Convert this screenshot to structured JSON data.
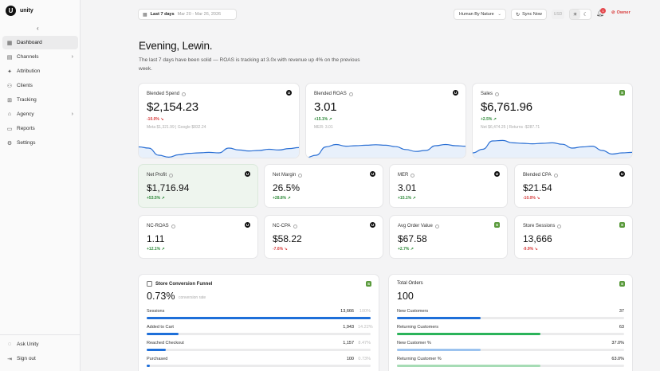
{
  "brand": {
    "name": "unity",
    "logo_letter": "U"
  },
  "sidebar": {
    "collapse_icon": "chevron-left-icon",
    "items": [
      {
        "label": "Dashboard",
        "icon": "grid-icon",
        "active": true,
        "expandable": false
      },
      {
        "label": "Channels",
        "icon": "layers-icon",
        "active": false,
        "expandable": true
      },
      {
        "label": "Attribution",
        "icon": "sparkle-icon",
        "active": false,
        "expandable": false
      },
      {
        "label": "Clients",
        "icon": "users-icon",
        "active": false,
        "expandable": false
      },
      {
        "label": "Tracking",
        "icon": "tracking-icon",
        "active": false,
        "expandable": false
      },
      {
        "label": "Agency",
        "icon": "building-icon",
        "active": false,
        "expandable": true
      },
      {
        "label": "Reports",
        "icon": "file-icon",
        "active": false,
        "expandable": false
      },
      {
        "label": "Settings",
        "icon": "gear-icon",
        "active": false,
        "expandable": false
      }
    ],
    "bottom": [
      {
        "label": "Ask Unity",
        "icon": "chat-icon"
      },
      {
        "label": "Sign out",
        "icon": "logout-icon"
      }
    ]
  },
  "topbar": {
    "date_label": "Last 7 days",
    "date_range": "Mar 20 - Mar 26, 2026",
    "store": "Human By Nature",
    "sync_label": "Sync Now",
    "currency": "USD",
    "notifications": "1",
    "role": "Owner"
  },
  "greeting": "Evening, Lewin.",
  "summary": "The last 7 days have been solid — ROAS is tracking at 3.0x with revenue up 4% on the previous week.",
  "top_cards": [
    {
      "label": "Blended Spend",
      "value": "$2,154.23",
      "delta": "-10.0%",
      "trend": "down",
      "sub": "Meta $1,321.99 | Google $832.24",
      "source": "unity",
      "spark": [
        0.55,
        0.5,
        0.2,
        0.12,
        0.22,
        0.28,
        0.3,
        0.32,
        0.3,
        0.5,
        0.42,
        0.38,
        0.4,
        0.45,
        0.42,
        0.48,
        0.52
      ]
    },
    {
      "label": "Blended ROAS",
      "value": "3.01",
      "delta": "+15.1%",
      "trend": "up",
      "sub": "MER: 3.01",
      "source": "unity",
      "spark": [
        0.1,
        0.2,
        0.55,
        0.65,
        0.58,
        0.6,
        0.62,
        0.64,
        0.62,
        0.56,
        0.44,
        0.36,
        0.4,
        0.6,
        0.65,
        0.6,
        0.58
      ]
    },
    {
      "label": "Sales",
      "value": "$6,761.96",
      "delta": "+2.5%",
      "trend": "up",
      "sub": "Net $6,474.25 | Returns -$287.71",
      "source": "shopify",
      "spark": [
        0.3,
        0.45,
        0.8,
        0.82,
        0.72,
        0.7,
        0.68,
        0.7,
        0.72,
        0.66,
        0.5,
        0.55,
        0.58,
        0.4,
        0.25,
        0.3,
        0.32
      ]
    }
  ],
  "metric_cards": [
    {
      "label": "Net Profit",
      "value": "$1,716.94",
      "delta": "+53.5%",
      "trend": "up",
      "source": "unity",
      "highlight": true
    },
    {
      "label": "Net Margin",
      "value": "26.5%",
      "delta": "+28.8%",
      "trend": "up",
      "source": "unity",
      "highlight": false
    },
    {
      "label": "MER",
      "value": "3.01",
      "delta": "+15.1%",
      "trend": "up",
      "source": "unity",
      "highlight": false
    },
    {
      "label": "Blended CPA",
      "value": "$21.54",
      "delta": "-10.0%",
      "trend": "down",
      "source": "unity",
      "highlight": false
    },
    {
      "label": "NC-ROAS",
      "value": "1.11",
      "delta": "+12.1%",
      "trend": "up",
      "source": "unity",
      "highlight": false
    },
    {
      "label": "NC-CPA",
      "value": "$58.22",
      "delta": "-7.6%",
      "trend": "down",
      "source": "unity",
      "highlight": false
    },
    {
      "label": "Avg Order Value",
      "value": "$67.58",
      "delta": "+2.7%",
      "trend": "up",
      "source": "shopify",
      "highlight": false
    },
    {
      "label": "Store Sessions",
      "value": "13,666",
      "delta": "-9.9%",
      "trend": "down-bad",
      "source": "shopify",
      "highlight": false
    }
  ],
  "funnel": {
    "title": "Store Conversion Funnel",
    "rate": "0.73%",
    "rate_label": "conversion rate",
    "rows": [
      {
        "label": "Sessions",
        "value": "13,666",
        "pct": "100%",
        "fill": 1.0
      },
      {
        "label": "Added to Cart",
        "value": "1,943",
        "pct": "14.22%",
        "fill": 0.1422
      },
      {
        "label": "Reached Checkout",
        "value": "1,157",
        "pct": "8.47%",
        "fill": 0.0847
      },
      {
        "label": "Purchased",
        "value": "100",
        "pct": "0.73%",
        "fill": 0.0073
      }
    ]
  },
  "orders": {
    "title": "Total Orders",
    "total": "100",
    "rows": [
      {
        "label": "New Customers",
        "value": "37",
        "fill": 0.37,
        "color": "#1e6fd9"
      },
      {
        "label": "Returning Customers",
        "value": "63",
        "fill": 0.63,
        "color": "#2bb35a"
      },
      {
        "label": "New Customer %",
        "value": "37.0%",
        "fill": 0.37,
        "color": "#9cc3ef"
      },
      {
        "label": "Returning Customer %",
        "value": "63.0%",
        "fill": 0.63,
        "color": "#a6dcb5"
      }
    ]
  },
  "colors": {
    "accent_blue": "#1e6fd9",
    "positive": "#2f8a3a",
    "negative": "#d63b3b",
    "highlight_bg": "#eef5ee"
  }
}
